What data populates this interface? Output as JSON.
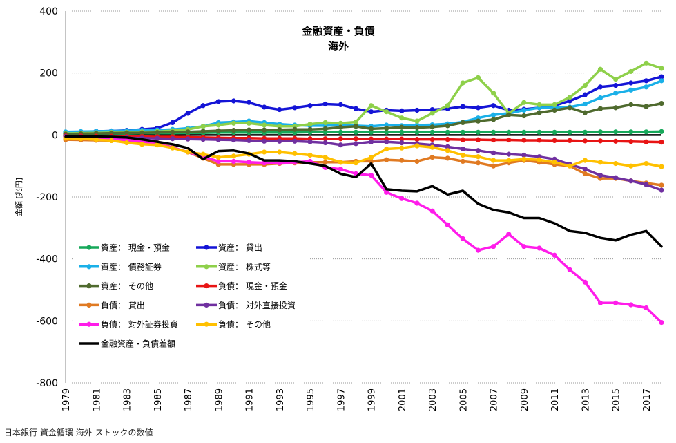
{
  "source_note": "日本銀行 資金循環 海外 ストックの数値",
  "chart_data": {
    "type": "line",
    "title": "金融資産・負債",
    "subtitle": "海外",
    "xlabel": "",
    "ylabel": "金額 [兆円]",
    "ylim": [
      -800,
      400
    ],
    "yticks": [
      400,
      200,
      0,
      -200,
      -400,
      -600,
      -800
    ],
    "xlim": [
      1979,
      2018
    ],
    "xticks": [
      "1979",
      "1981",
      "1983",
      "1985",
      "1987",
      "1989",
      "1991",
      "1993",
      "1995",
      "1997",
      "1999",
      "2001",
      "2003",
      "2005",
      "2007",
      "2009",
      "2011",
      "2013",
      "2015",
      "2017"
    ],
    "x": [
      1979,
      1980,
      1981,
      1982,
      1983,
      1984,
      1985,
      1986,
      1987,
      1988,
      1989,
      1990,
      1991,
      1992,
      1993,
      1994,
      1995,
      1996,
      1997,
      1998,
      1999,
      2000,
      2001,
      2002,
      2003,
      2004,
      2005,
      2006,
      2007,
      2008,
      2009,
      2010,
      2011,
      2012,
      2013,
      2014,
      2015,
      2016,
      2017,
      2018
    ],
    "grid": true,
    "legend_position": "lower-left",
    "series": [
      {
        "name": "資産： 現金・預金",
        "color": "#17a85a",
        "width": 3.5,
        "marker": true,
        "values": [
          5,
          5,
          5,
          5,
          5,
          6,
          6,
          6,
          7,
          7,
          8,
          8,
          8,
          8,
          8,
          8,
          9,
          9,
          9,
          9,
          9,
          9,
          9,
          9,
          9,
          9,
          9,
          9,
          9,
          9,
          9,
          9,
          9,
          9,
          9,
          10,
          10,
          10,
          10,
          11
        ]
      },
      {
        "name": "資産： 貸出",
        "color": "#1414d6",
        "width": 3.5,
        "marker": true,
        "values": [
          8,
          10,
          12,
          13,
          15,
          18,
          22,
          40,
          70,
          95,
          108,
          110,
          105,
          90,
          82,
          88,
          95,
          100,
          98,
          85,
          75,
          80,
          78,
          80,
          82,
          85,
          92,
          88,
          95,
          80,
          83,
          88,
          95,
          110,
          130,
          155,
          160,
          168,
          175,
          188
        ]
      },
      {
        "name": "資産： 債務証券",
        "color": "#1ab0e8",
        "width": 3.5,
        "marker": true,
        "values": [
          10,
          11,
          12,
          13,
          14,
          15,
          16,
          18,
          22,
          28,
          40,
          42,
          45,
          40,
          35,
          32,
          30,
          30,
          32,
          30,
          28,
          32,
          30,
          32,
          33,
          36,
          42,
          55,
          65,
          70,
          80,
          88,
          88,
          90,
          100,
          120,
          135,
          145,
          155,
          175
        ]
      },
      {
        "name": "資産： 株式等",
        "color": "#8ed04a",
        "width": 3.5,
        "marker": true,
        "values": [
          5,
          6,
          7,
          8,
          9,
          10,
          11,
          14,
          18,
          28,
          32,
          38,
          38,
          32,
          28,
          28,
          35,
          40,
          38,
          42,
          95,
          75,
          55,
          45,
          70,
          95,
          168,
          185,
          135,
          70,
          105,
          98,
          98,
          122,
          160,
          212,
          180,
          205,
          232,
          215
        ]
      },
      {
        "name": "資産： その他",
        "color": "#4f6a2e",
        "width": 3.5,
        "marker": true,
        "values": [
          3,
          4,
          5,
          6,
          7,
          7,
          8,
          9,
          10,
          12,
          14,
          15,
          16,
          16,
          17,
          18,
          18,
          20,
          25,
          28,
          20,
          22,
          25,
          24,
          26,
          30,
          40,
          45,
          50,
          65,
          62,
          72,
          80,
          88,
          72,
          85,
          88,
          98,
          92,
          102
        ]
      },
      {
        "name": "負債： 現金・預金",
        "color": "#e81414",
        "width": 3.5,
        "marker": true,
        "values": [
          -3,
          -3,
          -4,
          -4,
          -5,
          -5,
          -6,
          -6,
          -7,
          -8,
          -9,
          -10,
          -10,
          -11,
          -11,
          -11,
          -12,
          -12,
          -12,
          -12,
          -13,
          -13,
          -13,
          -14,
          -14,
          -14,
          -15,
          -15,
          -16,
          -16,
          -17,
          -17,
          -18,
          -18,
          -19,
          -19,
          -20,
          -21,
          -22,
          -23
        ]
      },
      {
        "name": "負債： 貸出",
        "color": "#e07a22",
        "width": 3.5,
        "marker": true,
        "values": [
          -15,
          -16,
          -17,
          -18,
          -20,
          -22,
          -25,
          -40,
          -55,
          -75,
          -95,
          -95,
          -95,
          -95,
          -92,
          -90,
          -88,
          -88,
          -88,
          -85,
          -85,
          -80,
          -82,
          -85,
          -72,
          -75,
          -85,
          -90,
          -100,
          -90,
          -82,
          -88,
          -95,
          -100,
          -125,
          -140,
          -140,
          -148,
          -155,
          -162
        ]
      },
      {
        "name": "負債： 対外直接投資",
        "color": "#7030a0",
        "width": 3.5,
        "marker": true,
        "values": [
          -5,
          -6,
          -7,
          -8,
          -9,
          -10,
          -11,
          -12,
          -13,
          -14,
          -15,
          -16,
          -18,
          -20,
          -20,
          -20,
          -22,
          -25,
          -32,
          -28,
          -22,
          -22,
          -25,
          -28,
          -32,
          -38,
          -45,
          -50,
          -58,
          -62,
          -65,
          -70,
          -78,
          -95,
          -110,
          -130,
          -138,
          -148,
          -160,
          -178
        ]
      },
      {
        "name": "負債： 対外証券投資",
        "color": "#ff1cea",
        "width": 3.5,
        "marker": true,
        "values": [
          -8,
          -10,
          -12,
          -14,
          -16,
          -20,
          -30,
          -40,
          -55,
          -70,
          -85,
          -85,
          -88,
          -90,
          -90,
          -88,
          -85,
          -105,
          -110,
          -125,
          -130,
          -185,
          -205,
          -220,
          -245,
          -290,
          -335,
          -372,
          -360,
          -320,
          -360,
          -365,
          -388,
          -435,
          -475,
          -542,
          -542,
          -548,
          -558,
          -605
        ]
      },
      {
        "name": "負債： その他",
        "color": "#ffc000",
        "width": 3.5,
        "marker": true,
        "values": [
          -10,
          -12,
          -15,
          -18,
          -25,
          -30,
          -32,
          -42,
          -55,
          -62,
          -72,
          -68,
          -62,
          -55,
          -55,
          -60,
          -65,
          -72,
          -88,
          -90,
          -72,
          -45,
          -42,
          -35,
          -40,
          -50,
          -65,
          -70,
          -82,
          -82,
          -78,
          -80,
          -88,
          -100,
          -82,
          -88,
          -92,
          -100,
          -92,
          -102
        ]
      },
      {
        "name": "金融資産・負債差額",
        "color": "#000000",
        "width": 3.5,
        "marker": false,
        "values": [
          -5,
          -5,
          -5,
          -6,
          -8,
          -14,
          -22,
          -30,
          -42,
          -78,
          -52,
          -50,
          -60,
          -82,
          -82,
          -85,
          -92,
          -100,
          -125,
          -136,
          -92,
          -175,
          -180,
          -182,
          -165,
          -192,
          -180,
          -222,
          -242,
          -250,
          -268,
          -268,
          -285,
          -310,
          -316,
          -332,
          -340,
          -322,
          -310,
          -360
        ]
      }
    ]
  }
}
